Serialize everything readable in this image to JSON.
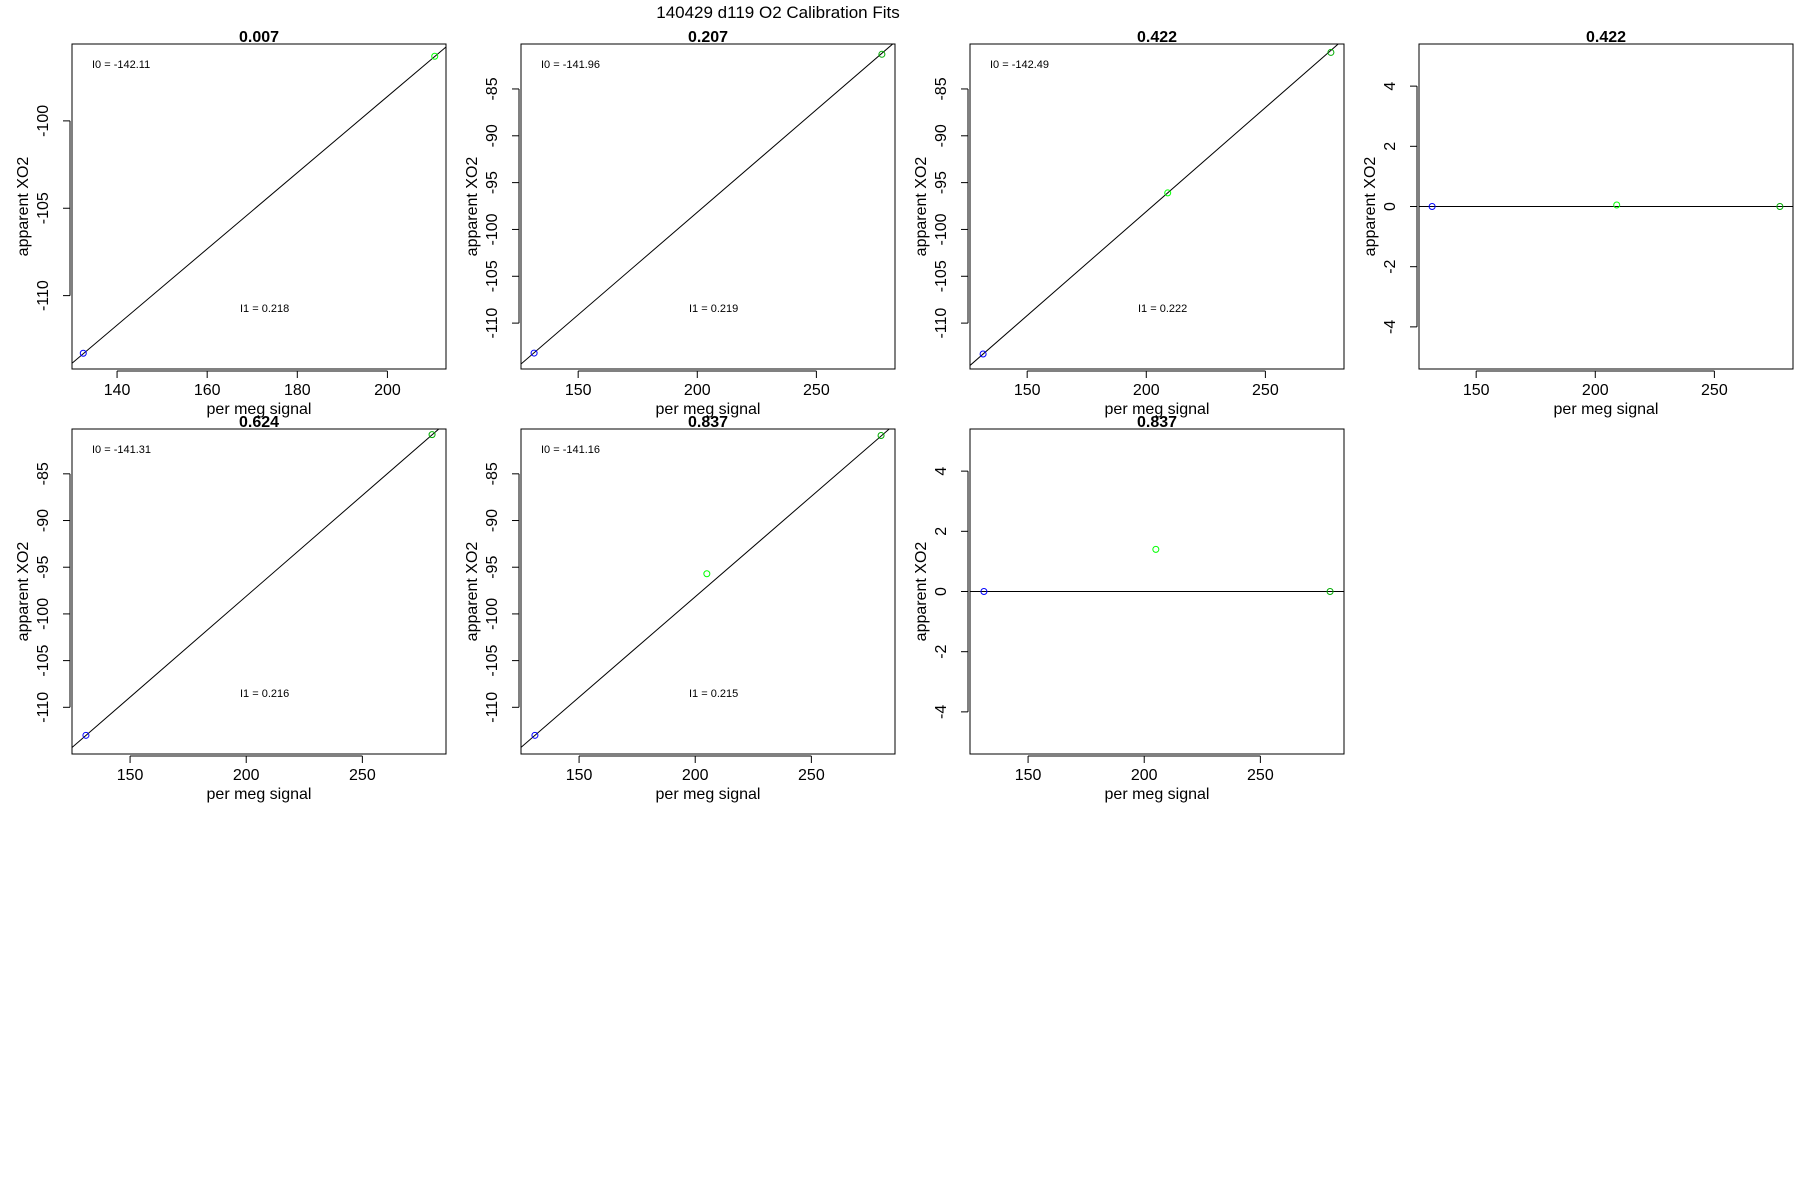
{
  "figure": {
    "title": "140429   d119   O2 Calibration Fits"
  },
  "chart_data": [
    {
      "type": "scatter",
      "kind": "fit",
      "title": "0.007",
      "xlabel": "per meg signal",
      "ylabel": "apparent XO2",
      "xlim": [
        130,
        213
      ],
      "ylim": [
        -114.2,
        -95.6
      ],
      "xticks": [
        140,
        160,
        180,
        200
      ],
      "yticks": [
        -100,
        -105,
        -110
      ],
      "annotations": {
        "i0": "I0 =  -142.11",
        "i1": "I1 =  0.218"
      },
      "fit_line": {
        "x": [
          130,
          213
        ],
        "y": [
          -113.87,
          -95.77
        ]
      },
      "series": [
        {
          "x": [
            132.5
          ],
          "y": [
            -113.3
          ],
          "color": "#0000ff"
        },
        {
          "x": [
            210.5
          ],
          "y": [
            -96.3
          ],
          "color": "#00ff00"
        }
      ]
    },
    {
      "type": "scatter",
      "kind": "fit",
      "title": "0.207",
      "xlabel": "per meg signal",
      "ylabel": "apparent XO2",
      "xlim": [
        126,
        283
      ],
      "ylim": [
        -114.9,
        -80.2
      ],
      "xticks": [
        150,
        200,
        250
      ],
      "yticks": [
        -85,
        -90,
        -95,
        -100,
        -105,
        -110
      ],
      "annotations": {
        "i0": "I0 =  -141.96",
        "i1": "I1 =  0.219"
      },
      "fit_line": {
        "x": [
          126,
          283
        ],
        "y": [
          -114.37,
          -79.99
        ]
      },
      "series": [
        {
          "x": [
            131.5
          ],
          "y": [
            -113.2
          ],
          "color": "#0000ff"
        },
        {
          "x": [
            277.5
          ],
          "y": [
            -81.3
          ],
          "color": "#00aa00"
        }
      ]
    },
    {
      "type": "scatter",
      "kind": "fit",
      "title": "0.422",
      "xlabel": "per meg signal",
      "ylabel": "apparent XO2",
      "xlim": [
        126,
        283
      ],
      "ylim": [
        -114.9,
        -80.2
      ],
      "xticks": [
        150,
        200,
        250
      ],
      "yticks": [
        -85,
        -90,
        -95,
        -100,
        -105,
        -110
      ],
      "annotations": {
        "i0": "I0 =  -142.49",
        "i1": "I1 =  0.222"
      },
      "fit_line": {
        "x": [
          126,
          283
        ],
        "y": [
          -114.52,
          -79.66
        ]
      },
      "series": [
        {
          "x": [
            131.5
          ],
          "y": [
            -113.3
          ],
          "color": "#0000ff"
        },
        {
          "x": [
            209
          ],
          "y": [
            -96.1
          ],
          "color": "#00ff00"
        },
        {
          "x": [
            277.5
          ],
          "y": [
            -81.1
          ],
          "color": "#00aa00"
        }
      ]
    },
    {
      "type": "scatter",
      "kind": "residual",
      "title": "0.422",
      "xlabel": "per meg signal",
      "ylabel": "apparent XO2",
      "xlim": [
        126,
        283
      ],
      "ylim": [
        -5.4,
        5.4
      ],
      "xticks": [
        150,
        200,
        250
      ],
      "yticks": [
        4,
        2,
        0,
        -2,
        -4
      ],
      "zero_line": 0,
      "series": [
        {
          "x": [
            131.5
          ],
          "y": [
            0
          ],
          "color": "#0000ff"
        },
        {
          "x": [
            209
          ],
          "y": [
            0.05
          ],
          "color": "#00ff00"
        },
        {
          "x": [
            277.5
          ],
          "y": [
            0
          ],
          "color": "#00aa00"
        }
      ]
    },
    {
      "type": "scatter",
      "kind": "fit",
      "title": "0.624",
      "xlabel": "per meg signal",
      "ylabel": "apparent XO2",
      "xlim": [
        125,
        286
      ],
      "ylim": [
        -115.0,
        -80.2
      ],
      "xticks": [
        150,
        200,
        250
      ],
      "yticks": [
        -85,
        -90,
        -95,
        -100,
        -105,
        -110
      ],
      "annotations": {
        "i0": "I0 =  -141.31",
        "i1": "I1 =  0.216"
      },
      "fit_line": {
        "x": [
          125,
          286
        ],
        "y": [
          -114.31,
          -79.53
        ]
      },
      "series": [
        {
          "x": [
            131
          ],
          "y": [
            -113.0
          ],
          "color": "#0000ff"
        },
        {
          "x": [
            280
          ],
          "y": [
            -80.8
          ],
          "color": "#00aa00"
        }
      ]
    },
    {
      "type": "scatter",
      "kind": "fit",
      "title": "0.837",
      "xlabel": "per meg signal",
      "ylabel": "apparent XO2",
      "xlim": [
        125,
        286
      ],
      "ylim": [
        -115.0,
        -80.2
      ],
      "xticks": [
        150,
        200,
        250
      ],
      "yticks": [
        -85,
        -90,
        -95,
        -100,
        -105,
        -110
      ],
      "annotations": {
        "i0": "I0 =  -141.16",
        "i1": "I1 =  0.215"
      },
      "fit_line": {
        "x": [
          125,
          286
        ],
        "y": [
          -114.29,
          -79.67
        ]
      },
      "series": [
        {
          "x": [
            131
          ],
          "y": [
            -113.0
          ],
          "color": "#0000ff"
        },
        {
          "x": [
            205
          ],
          "y": [
            -95.7
          ],
          "color": "#00ff00"
        },
        {
          "x": [
            280
          ],
          "y": [
            -80.9
          ],
          "color": "#00aa00"
        }
      ]
    },
    {
      "type": "scatter",
      "kind": "residual",
      "title": "0.837",
      "xlabel": "per meg signal",
      "ylabel": "apparent XO2",
      "xlim": [
        125,
        286
      ],
      "ylim": [
        -5.4,
        5.4
      ],
      "xticks": [
        150,
        200,
        250
      ],
      "yticks": [
        4,
        2,
        0,
        -2,
        -4
      ],
      "zero_line": 0,
      "series": [
        {
          "x": [
            131
          ],
          "y": [
            0
          ],
          "color": "#0000ff"
        },
        {
          "x": [
            205
          ],
          "y": [
            1.4
          ],
          "color": "#00ff00"
        },
        {
          "x": [
            280
          ],
          "y": [
            0
          ],
          "color": "#00aa00"
        }
      ]
    }
  ]
}
